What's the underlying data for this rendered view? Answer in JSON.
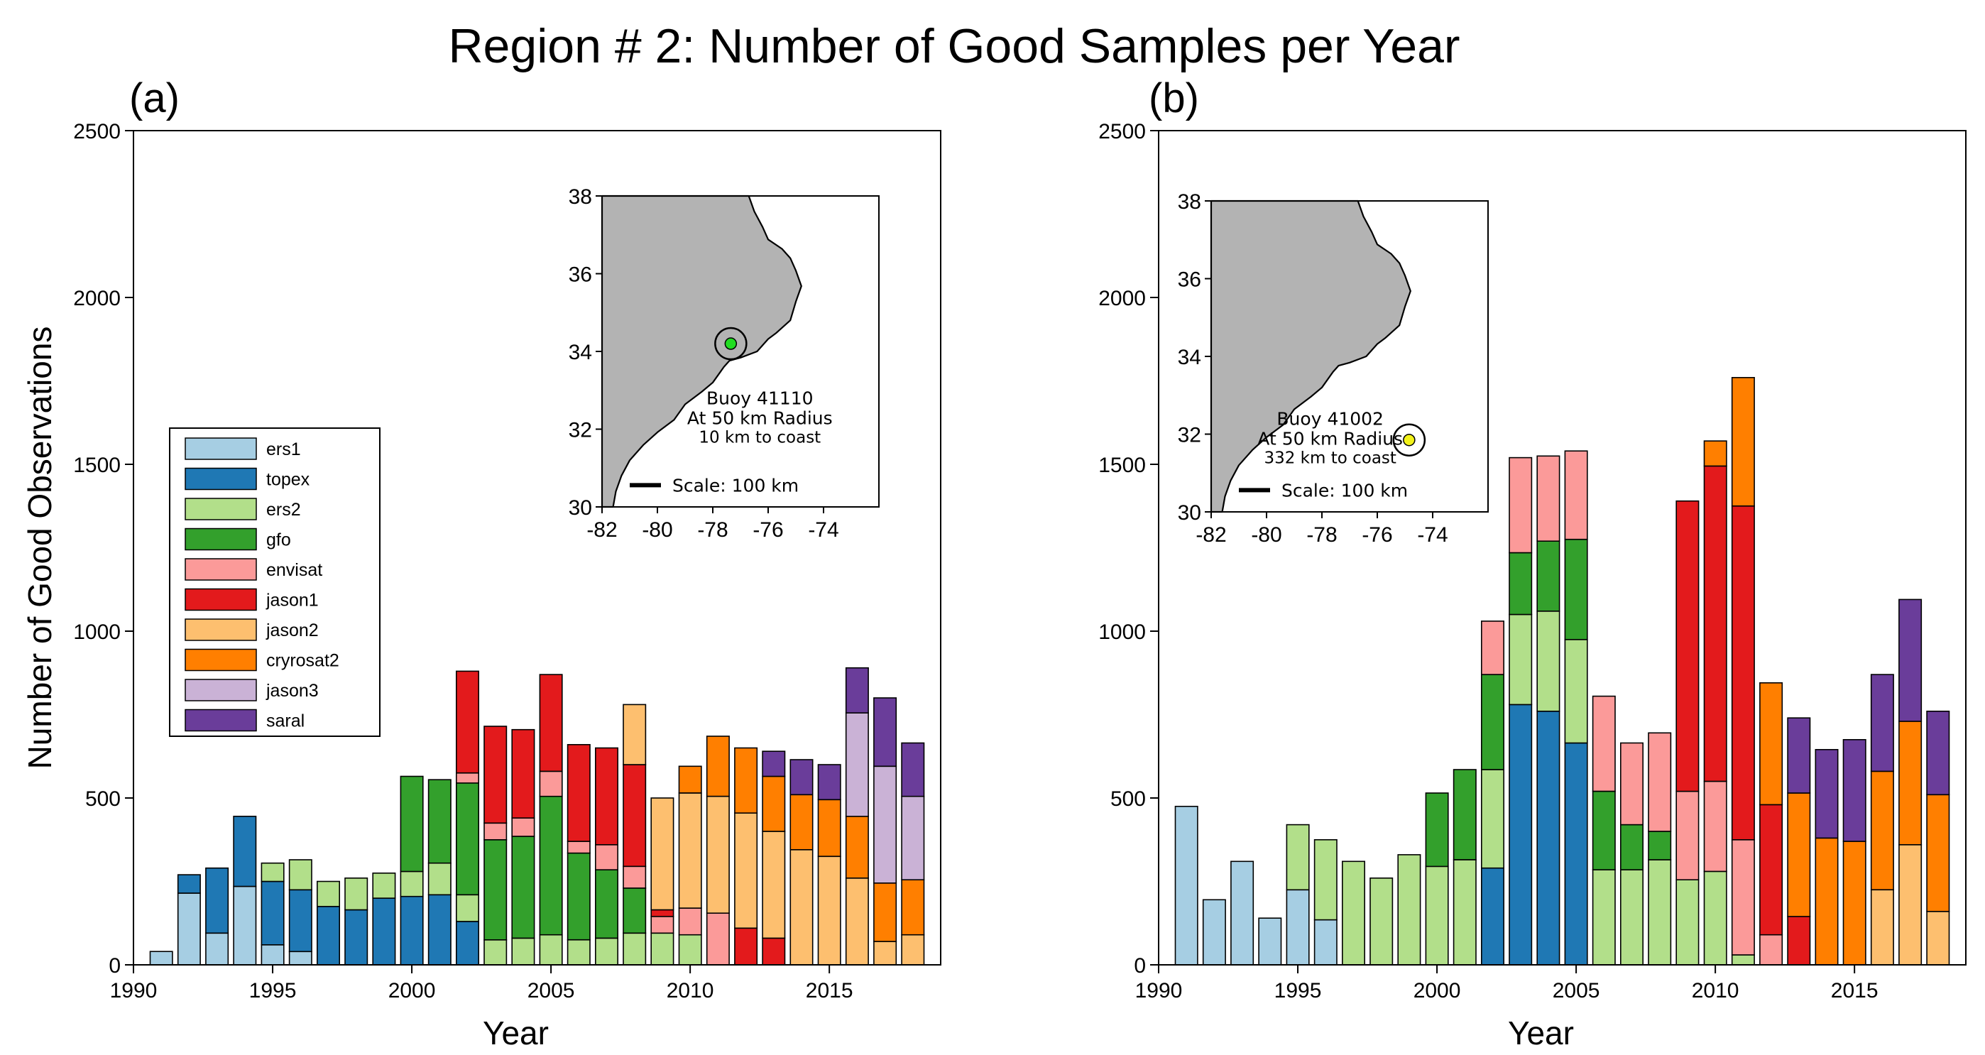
{
  "title": "Region # 2: Number of Good Samples per Year",
  "colors": {
    "ers1": "#a6cee3",
    "topex": "#1f78b4",
    "ers2": "#b2df8a",
    "gfo": "#33a02c",
    "envisat": "#fb9a99",
    "jason1": "#e31a1c",
    "jason2": "#fdbf6f",
    "cryrosat2": "#ff7f00",
    "jason3": "#cab2d6",
    "saral": "#6a3d9a",
    "land": "#b3b3b3",
    "buoy_a": "#22dd22",
    "buoy_b": "#f2f21a"
  },
  "legend": [
    "ers1",
    "topex",
    "ers2",
    "gfo",
    "envisat",
    "jason1",
    "jason2",
    "cryrosat2",
    "jason3",
    "saral"
  ],
  "chart_data": [
    {
      "type": "bar",
      "stacked": true,
      "panel_label": "(a)",
      "xlabel": "Year",
      "ylabel": "Number of Good Observations",
      "xlim": [
        1990,
        2019
      ],
      "ylim": [
        0,
        2500
      ],
      "xticks": [
        1990,
        1995,
        2000,
        2005,
        2010,
        2015
      ],
      "yticks": [
        0,
        500,
        1000,
        1500,
        2000,
        2500
      ],
      "legend_position": "center-left",
      "years": [
        1991,
        1992,
        1993,
        1994,
        1995,
        1996,
        1997,
        1998,
        1999,
        2000,
        2001,
        2002,
        2003,
        2004,
        2005,
        2006,
        2007,
        2008,
        2009,
        2010,
        2011,
        2012,
        2013,
        2014,
        2015,
        2016,
        2017,
        2018
      ],
      "series": [
        {
          "name": "ers1",
          "values": [
            40,
            215,
            95,
            235,
            60,
            40,
            0,
            0,
            0,
            0,
            0,
            0,
            0,
            0,
            0,
            0,
            0,
            0,
            0,
            0,
            0,
            0,
            0,
            0,
            0,
            0,
            0,
            0
          ]
        },
        {
          "name": "topex",
          "values": [
            0,
            55,
            195,
            210,
            190,
            185,
            175,
            165,
            200,
            205,
            210,
            130,
            0,
            0,
            0,
            0,
            0,
            0,
            0,
            0,
            0,
            0,
            0,
            0,
            0,
            0,
            0,
            0
          ]
        },
        {
          "name": "ers2",
          "values": [
            0,
            0,
            0,
            0,
            55,
            90,
            75,
            95,
            75,
            75,
            95,
            80,
            75,
            80,
            90,
            75,
            80,
            95,
            95,
            90,
            0,
            0,
            0,
            0,
            0,
            0,
            0,
            0
          ]
        },
        {
          "name": "gfo",
          "values": [
            0,
            0,
            0,
            0,
            0,
            0,
            0,
            0,
            0,
            285,
            250,
            335,
            300,
            305,
            415,
            260,
            205,
            135,
            0,
            0,
            0,
            0,
            0,
            0,
            0,
            0,
            0,
            0
          ]
        },
        {
          "name": "envisat",
          "values": [
            0,
            0,
            0,
            0,
            0,
            0,
            0,
            0,
            0,
            0,
            0,
            30,
            50,
            55,
            75,
            35,
            75,
            65,
            50,
            80,
            155,
            0,
            0,
            0,
            0,
            0,
            0,
            0
          ]
        },
        {
          "name": "jason1",
          "values": [
            0,
            0,
            0,
            0,
            0,
            0,
            0,
            0,
            0,
            0,
            0,
            305,
            290,
            265,
            290,
            290,
            290,
            305,
            20,
            0,
            0,
            110,
            80,
            0,
            0,
            0,
            0,
            0
          ]
        },
        {
          "name": "jason2",
          "values": [
            0,
            0,
            0,
            0,
            0,
            0,
            0,
            0,
            0,
            0,
            0,
            0,
            0,
            0,
            0,
            0,
            0,
            180,
            335,
            345,
            350,
            345,
            320,
            345,
            325,
            260,
            70,
            90
          ]
        },
        {
          "name": "cryrosat2",
          "values": [
            0,
            0,
            0,
            0,
            0,
            0,
            0,
            0,
            0,
            0,
            0,
            0,
            0,
            0,
            0,
            0,
            0,
            0,
            0,
            80,
            180,
            195,
            165,
            165,
            170,
            185,
            175,
            165
          ]
        },
        {
          "name": "jason3",
          "values": [
            0,
            0,
            0,
            0,
            0,
            0,
            0,
            0,
            0,
            0,
            0,
            0,
            0,
            0,
            0,
            0,
            0,
            0,
            0,
            0,
            0,
            0,
            0,
            0,
            0,
            310,
            350,
            250
          ]
        },
        {
          "name": "saral",
          "values": [
            0,
            0,
            0,
            0,
            0,
            0,
            0,
            0,
            0,
            0,
            0,
            0,
            0,
            0,
            0,
            0,
            0,
            0,
            0,
            0,
            0,
            0,
            75,
            105,
            105,
            135,
            205,
            160
          ]
        }
      ],
      "inset": {
        "xlim": [
          -82,
          -72
        ],
        "ylim": [
          30,
          38
        ],
        "xticks": [
          -82,
          -80,
          -78,
          -76,
          -74
        ],
        "yticks": [
          30,
          32,
          34,
          36,
          38
        ],
        "buoy_lon": -77.35,
        "buoy_lat": 34.2,
        "label_line1": "Buoy 41110",
        "label_line2": "At 50 km Radius",
        "label_line3": "10 km to coast",
        "scale_label": "Scale: 100 km"
      }
    },
    {
      "type": "bar",
      "stacked": true,
      "panel_label": "(b)",
      "xlabel": "Year",
      "ylabel": "",
      "xlim": [
        1990,
        2019
      ],
      "ylim": [
        0,
        2500
      ],
      "xticks": [
        1990,
        1995,
        2000,
        2005,
        2010,
        2015
      ],
      "yticks": [
        0,
        500,
        1000,
        1500,
        2000,
        2500
      ],
      "years": [
        1991,
        1992,
        1993,
        1994,
        1995,
        1996,
        1997,
        1998,
        1999,
        2000,
        2001,
        2002,
        2003,
        2004,
        2005,
        2006,
        2007,
        2008,
        2009,
        2010,
        2011,
        2012,
        2013,
        2014,
        2015,
        2016,
        2017,
        2018
      ],
      "series": [
        {
          "name": "ers1",
          "values": [
            475,
            195,
            310,
            140,
            225,
            135,
            0,
            0,
            0,
            0,
            0,
            0,
            0,
            0,
            0,
            0,
            0,
            0,
            0,
            0,
            0,
            0,
            0,
            0,
            0,
            0,
            0,
            0
          ]
        },
        {
          "name": "topex",
          "values": [
            0,
            0,
            0,
            0,
            0,
            0,
            0,
            0,
            0,
            0,
            0,
            290,
            780,
            760,
            665,
            0,
            0,
            0,
            0,
            0,
            0,
            0,
            0,
            0,
            0,
            0,
            0,
            0
          ]
        },
        {
          "name": "ers2",
          "values": [
            0,
            0,
            0,
            0,
            195,
            240,
            310,
            260,
            330,
            295,
            315,
            295,
            270,
            300,
            310,
            285,
            285,
            315,
            255,
            280,
            30,
            0,
            0,
            0,
            0,
            0,
            0,
            0
          ]
        },
        {
          "name": "gfo",
          "values": [
            0,
            0,
            0,
            0,
            0,
            0,
            0,
            0,
            0,
            220,
            270,
            285,
            185,
            210,
            300,
            235,
            135,
            85,
            0,
            0,
            0,
            0,
            0,
            0,
            0,
            0,
            0,
            0
          ]
        },
        {
          "name": "envisat",
          "values": [
            0,
            0,
            0,
            0,
            0,
            0,
            0,
            0,
            0,
            0,
            0,
            160,
            285,
            255,
            265,
            285,
            245,
            295,
            265,
            270,
            345,
            90,
            0,
            0,
            0,
            0,
            0,
            0
          ]
        },
        {
          "name": "jason1",
          "values": [
            0,
            0,
            0,
            0,
            0,
            0,
            0,
            0,
            0,
            0,
            0,
            0,
            0,
            0,
            0,
            0,
            0,
            0,
            870,
            945,
            1000,
            390,
            145,
            0,
            0,
            0,
            0,
            0
          ]
        },
        {
          "name": "jason2",
          "values": [
            0,
            0,
            0,
            0,
            0,
            0,
            0,
            0,
            0,
            0,
            0,
            0,
            0,
            0,
            0,
            0,
            0,
            0,
            0,
            0,
            0,
            0,
            0,
            0,
            0,
            225,
            360,
            160
          ]
        },
        {
          "name": "cryrosat2",
          "values": [
            0,
            0,
            0,
            0,
            0,
            0,
            0,
            0,
            0,
            0,
            0,
            0,
            0,
            0,
            0,
            0,
            0,
            0,
            0,
            75,
            385,
            365,
            370,
            380,
            370,
            355,
            370,
            350
          ]
        },
        {
          "name": "jason3",
          "values": [
            0,
            0,
            0,
            0,
            0,
            0,
            0,
            0,
            0,
            0,
            0,
            0,
            0,
            0,
            0,
            0,
            0,
            0,
            0,
            0,
            0,
            0,
            0,
            0,
            0,
            0,
            0,
            0
          ]
        },
        {
          "name": "saral",
          "values": [
            0,
            0,
            0,
            0,
            0,
            0,
            0,
            0,
            0,
            0,
            0,
            0,
            0,
            0,
            0,
            0,
            0,
            0,
            0,
            0,
            0,
            0,
            225,
            265,
            305,
            290,
            365,
            250
          ]
        }
      ],
      "inset": {
        "xlim": [
          -82,
          -72
        ],
        "ylim": [
          30,
          38
        ],
        "xticks": [
          -82,
          -80,
          -78,
          -76,
          -74
        ],
        "yticks": [
          30,
          32,
          34,
          36,
          38
        ],
        "buoy_lon": -74.85,
        "buoy_lat": 31.85,
        "label_line1": "Buoy 41002",
        "label_line2": "At 50 km Radius",
        "label_line3": "332 km to coast",
        "scale_label": "Scale: 100 km"
      }
    }
  ]
}
